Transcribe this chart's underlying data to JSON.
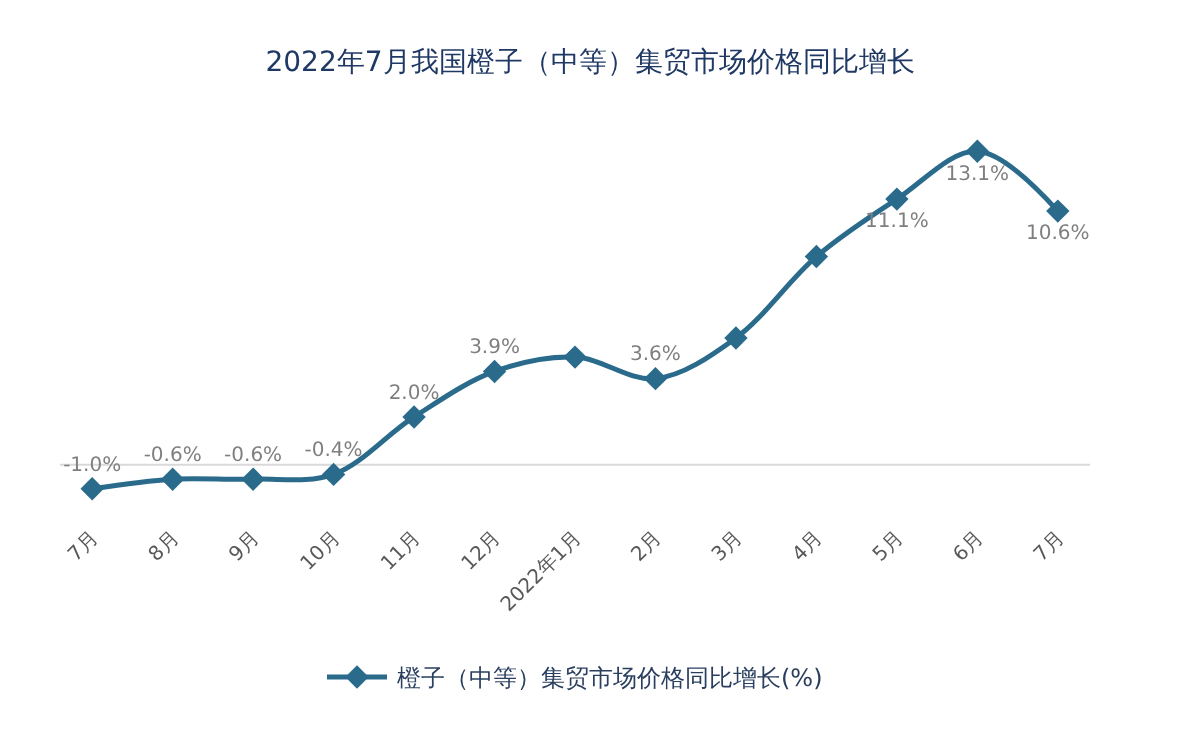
{
  "chart_data": {
    "type": "line",
    "title": "2022年7月我国橙子（中等）集贸市场价格同比增长",
    "categories": [
      "7月",
      "8月",
      "9月",
      "10月",
      "11月",
      "12月",
      "2022年1月",
      "2月",
      "3月",
      "4月",
      "5月",
      "6月",
      "7月"
    ],
    "series": [
      {
        "name": "橙子（中等）集贸市场价格同比增长(%)",
        "color": "#2a6b8c",
        "values": [
          -1.0,
          -0.6,
          -0.6,
          -0.4,
          2.0,
          3.9,
          4.5,
          3.6,
          5.3,
          8.7,
          11.1,
          13.1,
          10.6
        ],
        "value_labels": [
          "-1.0%",
          "-0.6%",
          "-0.6%",
          "-0.4%",
          "2.0%",
          "3.9%",
          null,
          "3.6%",
          null,
          null,
          "11.1%",
          "13.1%",
          "10.6%"
        ]
      }
    ],
    "marker": "diamond",
    "line_style": "solid",
    "legend": "bottom",
    "grid": false,
    "ref_lines": [
      {
        "axis": "y",
        "value": 0,
        "color": "#d9d9d9"
      }
    ]
  }
}
